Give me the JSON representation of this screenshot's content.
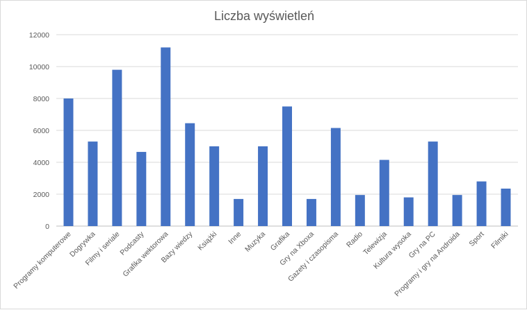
{
  "chart_data": {
    "type": "bar",
    "title": "Liczba wyświetleń",
    "xlabel": "",
    "ylabel": "",
    "ylim": [
      0,
      12000
    ],
    "yticks": [
      0,
      2000,
      4000,
      6000,
      8000,
      10000,
      12000
    ],
    "grid": true,
    "legend": "none",
    "bar_color": "#4472c4",
    "categories": [
      "Programy komputerowe",
      "Dogrywka",
      "Filmy i seriale",
      "Podcasty",
      "Grafika wektorowa",
      "Bazy wiedzy",
      "Książki",
      "Inne",
      "Muzyka",
      "Grafika",
      "Gry na Xboxa",
      "Gazety i czasopisma",
      "Radio",
      "Telewizja",
      "Kultura wysoka",
      "Gry na PC",
      "Programy i gry na Androida",
      "Sport",
      "Filmiki"
    ],
    "values": [
      8000,
      5300,
      9800,
      4650,
      11200,
      6450,
      5000,
      1700,
      5000,
      7500,
      1700,
      6150,
      1950,
      4150,
      1800,
      5300,
      1950,
      2800,
      2350
    ]
  }
}
